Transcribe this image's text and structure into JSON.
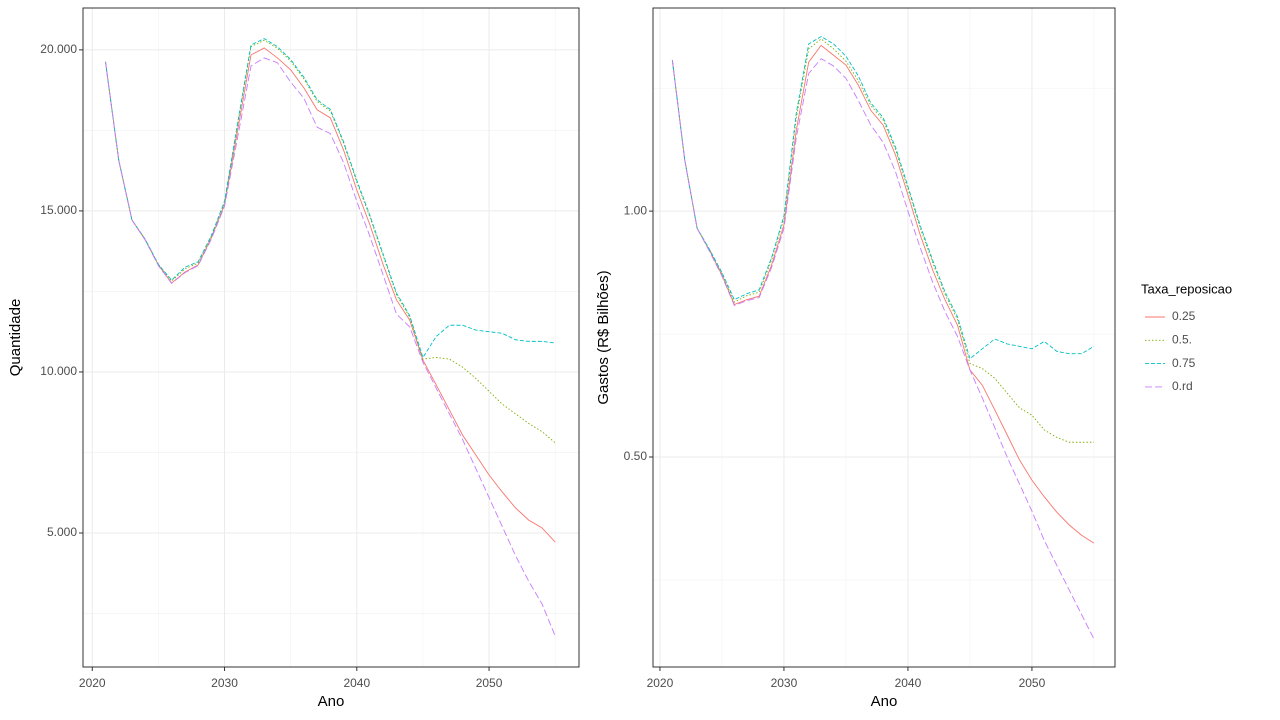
{
  "chart_data": [
    {
      "type": "line",
      "xlabel": "Ano",
      "ylabel": "Quantidade",
      "x": [
        2021,
        2022,
        2023,
        2024,
        2025,
        2026,
        2027,
        2028,
        2029,
        2030,
        2031,
        2032,
        2033,
        2034,
        2035,
        2036,
        2037,
        2038,
        2039,
        2040,
        2041,
        2042,
        2043,
        2044,
        2045,
        2046,
        2047,
        2048,
        2049,
        2050,
        2051,
        2052,
        2053,
        2054,
        2055
      ],
      "xlim": [
        2019.3,
        2056.8
      ],
      "xticks": [
        2020,
        2030,
        2040,
        2050
      ],
      "ylim": [
        840,
        21300
      ],
      "yticks": [
        {
          "value": 5000,
          "label": "5.000"
        },
        {
          "value": 10000,
          "label": "10.000"
        },
        {
          "value": 15000,
          "label": "15.000"
        },
        {
          "value": 20000,
          "label": "20.000"
        }
      ],
      "grid": true,
      "series": [
        {
          "color": "#f8766d",
          "dash": "solid",
          "values": [
            19630,
            16580,
            14720,
            14100,
            13320,
            12760,
            13100,
            13320,
            14160,
            15190,
            17520,
            19840,
            20060,
            19750,
            19380,
            18820,
            18140,
            17890,
            16890,
            15650,
            14560,
            13320,
            12240,
            11610,
            10370,
            9600,
            8820,
            8040,
            7420,
            6800,
            6270,
            5780,
            5400,
            5160,
            4720
          ]
        },
        {
          "color": "#7cae00",
          "dash": "dotted",
          "values": [
            19630,
            16580,
            14720,
            14120,
            13340,
            12820,
            13200,
            13380,
            14200,
            15250,
            17700,
            20100,
            20300,
            20050,
            19650,
            19100,
            18400,
            18100,
            17100,
            15900,
            14800,
            13600,
            12400,
            11700,
            10400,
            10450,
            10400,
            10150,
            9800,
            9400,
            9000,
            8700,
            8400,
            8150,
            7800
          ]
        },
        {
          "color": "#00bfc4",
          "dash": "dashed",
          "values": [
            19630,
            16580,
            14720,
            14120,
            13340,
            12850,
            13250,
            13420,
            14230,
            15300,
            17750,
            20150,
            20350,
            20100,
            19700,
            19150,
            18450,
            18150,
            17150,
            15950,
            14850,
            13650,
            12450,
            11750,
            10450,
            11100,
            11450,
            11450,
            11300,
            11250,
            11200,
            11000,
            10950,
            10950,
            10900
          ]
        },
        {
          "color": "#c77cff",
          "dash": "longdash",
          "values": [
            19630,
            16580,
            14720,
            14100,
            13300,
            12750,
            13080,
            13300,
            14120,
            15150,
            17300,
            19500,
            19750,
            19600,
            19000,
            18500,
            17600,
            17400,
            16500,
            15300,
            14200,
            13000,
            11800,
            11400,
            10300,
            9500,
            8700,
            7900,
            7000,
            6100,
            5200,
            4300,
            3500,
            2800,
            1800
          ]
        }
      ]
    },
    {
      "type": "line",
      "xlabel": "Ano",
      "ylabel": "Gastos (R$ Bilhões)",
      "x": [
        2021,
        2022,
        2023,
        2024,
        2025,
        2026,
        2027,
        2028,
        2029,
        2030,
        2031,
        2032,
        2033,
        2034,
        2035,
        2036,
        2037,
        2038,
        2039,
        2040,
        2041,
        2042,
        2043,
        2044,
        2045,
        2046,
        2047,
        2048,
        2049,
        2050,
        2051,
        2052,
        2053,
        2054,
        2055
      ],
      "xlim": [
        2019.44,
        2056.7
      ],
      "xticks": [
        2020,
        2030,
        2040,
        2050
      ],
      "ylim": [
        0.073,
        1.413
      ],
      "yticks": [
        {
          "value": 0.5,
          "label": "0.50"
        },
        {
          "value": 1,
          "label": "1.00"
        }
      ],
      "grid": true,
      "legend": "right",
      "legend_title": "Taxa_reposicao",
      "series": [
        {
          "name": "0.25",
          "color": "#f8766d",
          "dash": "solid",
          "values": [
            1.307,
            1.104,
            0.965,
            0.92,
            0.87,
            0.81,
            0.82,
            0.827,
            0.89,
            0.972,
            1.165,
            1.303,
            1.337,
            1.317,
            1.297,
            1.256,
            1.205,
            1.175,
            1.114,
            1.033,
            0.951,
            0.88,
            0.819,
            0.768,
            0.677,
            0.646,
            0.596,
            0.545,
            0.494,
            0.453,
            0.419,
            0.388,
            0.362,
            0.341,
            0.325
          ]
        },
        {
          "name": "0.5.",
          "color": "#7cae00",
          "dash": "dotted",
          "values": [
            1.307,
            1.104,
            0.965,
            0.922,
            0.873,
            0.815,
            0.828,
            0.835,
            0.9,
            0.985,
            1.19,
            1.33,
            1.35,
            1.33,
            1.305,
            1.265,
            1.215,
            1.185,
            1.125,
            1.045,
            0.965,
            0.895,
            0.83,
            0.78,
            0.69,
            0.68,
            0.66,
            0.63,
            0.6,
            0.585,
            0.555,
            0.54,
            0.53,
            0.53,
            0.53
          ]
        },
        {
          "name": "0.75",
          "color": "#00bfc4",
          "dash": "dashed",
          "values": [
            1.307,
            1.104,
            0.965,
            0.922,
            0.875,
            0.82,
            0.832,
            0.84,
            0.905,
            0.99,
            1.2,
            1.34,
            1.355,
            1.34,
            1.315,
            1.275,
            1.22,
            1.19,
            1.13,
            1.05,
            0.97,
            0.9,
            0.835,
            0.785,
            0.7,
            0.72,
            0.74,
            0.73,
            0.725,
            0.72,
            0.735,
            0.715,
            0.71,
            0.71,
            0.725
          ]
        },
        {
          "name": "0.rd",
          "color": "#c77cff",
          "dash": "longdash",
          "values": [
            1.307,
            1.104,
            0.965,
            0.918,
            0.868,
            0.808,
            0.818,
            0.824,
            0.885,
            0.965,
            1.15,
            1.28,
            1.31,
            1.295,
            1.27,
            1.225,
            1.175,
            1.14,
            1.08,
            1.0,
            0.925,
            0.855,
            0.795,
            0.745,
            0.677,
            0.62,
            0.56,
            0.5,
            0.445,
            0.39,
            0.33,
            0.28,
            0.23,
            0.18,
            0.13
          ]
        }
      ]
    }
  ]
}
